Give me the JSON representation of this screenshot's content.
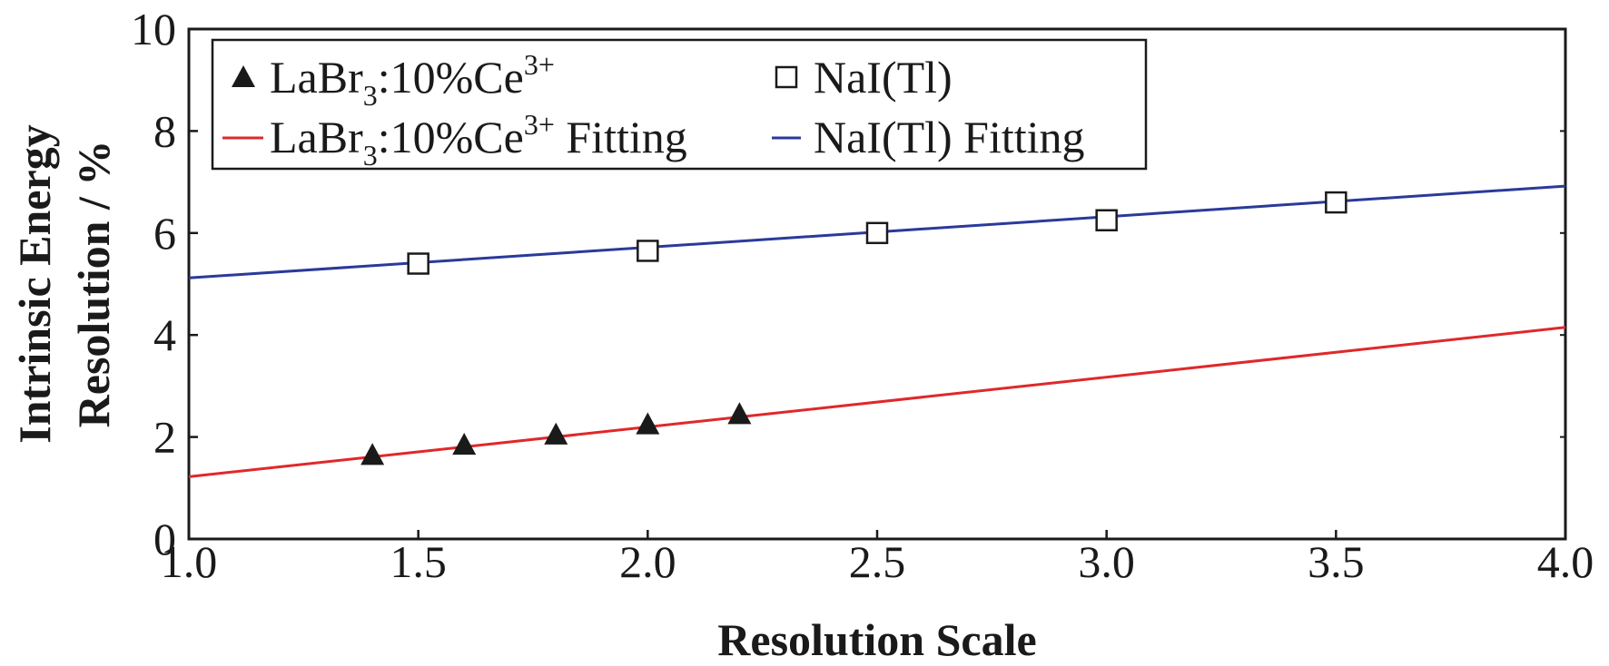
{
  "chart_data": {
    "type": "scatter",
    "xlabel": "Resolution Scale",
    "ylabel_lines": [
      "Intrinsic Energy",
      "Resolution / %"
    ],
    "xlim": [
      1.0,
      4.0
    ],
    "ylim": [
      0,
      10
    ],
    "x_ticks": [
      "1.0",
      "1.5",
      "2.0",
      "2.5",
      "3.0",
      "3.5",
      "4.0"
    ],
    "y_ticks": [
      "0",
      "2",
      "4",
      "6",
      "8",
      "10"
    ],
    "grid": false,
    "legend_position": "top-left",
    "series": [
      {
        "name": "LaBr3:10%Ce3+",
        "legend_parts": {
          "base": "LaBr",
          "sub": "3",
          "mid": ":10%Ce",
          "sup": "3+",
          "suffix": ""
        },
        "marker": "filled-triangle",
        "color": "#1a1a1a",
        "points": [
          [
            1.4,
            1.65
          ],
          [
            1.6,
            1.85
          ],
          [
            1.8,
            2.05
          ],
          [
            2.0,
            2.25
          ],
          [
            2.2,
            2.45
          ]
        ]
      },
      {
        "name": "NaI(Tl)",
        "legend_text": "NaI(Tl)",
        "marker": "open-square",
        "color": "#1a1a1a",
        "points": [
          [
            1.5,
            5.4
          ],
          [
            2.0,
            5.65
          ],
          [
            2.5,
            6.0
          ],
          [
            3.0,
            6.25
          ],
          [
            3.5,
            6.6
          ]
        ]
      },
      {
        "name": "LaBr3:10%Ce3+ Fitting",
        "legend_parts": {
          "base": "LaBr",
          "sub": "3",
          "mid": ":10%Ce",
          "sup": "3+",
          "suffix": " Fitting"
        },
        "type": "line",
        "color": "#e0282a",
        "points": [
          [
            1.0,
            1.22
          ],
          [
            4.0,
            4.15
          ]
        ]
      },
      {
        "name": "NaI(Tl) Fitting",
        "legend_text": "NaI(Tl) Fitting",
        "type": "line",
        "color": "#2a3a9a",
        "points": [
          [
            1.0,
            5.12
          ],
          [
            4.0,
            6.92
          ]
        ]
      }
    ]
  }
}
